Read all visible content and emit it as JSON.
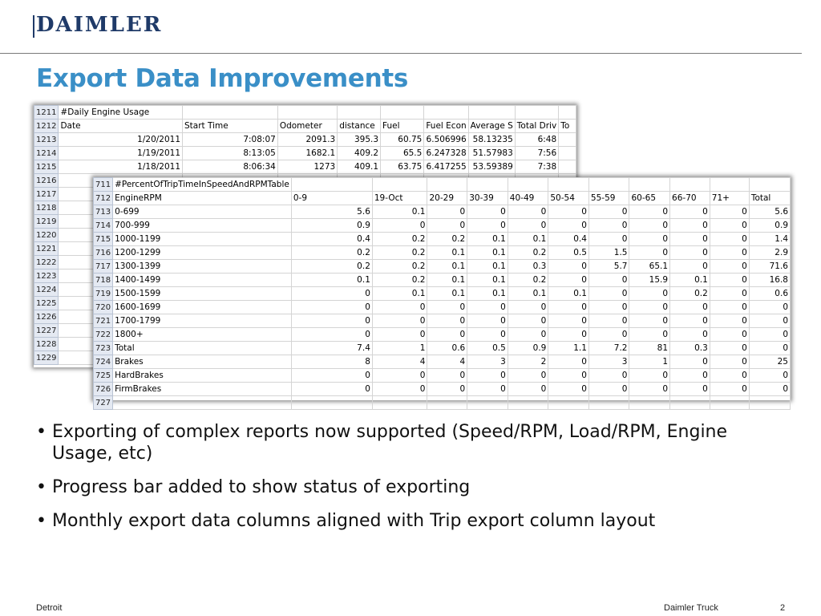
{
  "logo": {
    "text": "DAIMLER"
  },
  "title": "Export Data Improvements",
  "usage_table": {
    "rows": [
      [
        "1211",
        "#Daily Engine Usage",
        "",
        "",
        "",
        "",
        "",
        "",
        "",
        ""
      ],
      [
        "1212",
        "Date",
        "Start Time",
        "Odometer",
        "distance",
        "Fuel",
        "Fuel Econ",
        "Average S",
        "Total Driv",
        "To"
      ],
      [
        "1213",
        "1/20/2011",
        "7:08:07",
        "2091.3",
        "395.3",
        "60.75",
        "6.506996",
        "58.13235",
        "6:48",
        ""
      ],
      [
        "1214",
        "1/19/2011",
        "8:13:05",
        "1682.1",
        "409.2",
        "65.5",
        "6.247328",
        "51.57983",
        "7:56",
        ""
      ],
      [
        "1215",
        "1/18/2011",
        "8:06:34",
        "1273",
        "409.1",
        "63.75",
        "6.417255",
        "53.59389",
        "7:38",
        ""
      ],
      [
        "1216",
        "",
        "",
        "",
        "",
        "",
        "",
        "",
        "",
        ""
      ],
      [
        "1217",
        "",
        "",
        "",
        "",
        "",
        "",
        "",
        "",
        ""
      ],
      [
        "1218",
        "",
        "",
        "",
        "",
        "",
        "",
        "",
        "",
        ""
      ],
      [
        "1219",
        "",
        "",
        "",
        "",
        "",
        "",
        "",
        "",
        ""
      ],
      [
        "1220",
        "",
        "",
        "",
        "",
        "",
        "",
        "",
        "",
        ""
      ],
      [
        "1221",
        "",
        "",
        "",
        "",
        "",
        "",
        "",
        "",
        ""
      ],
      [
        "1222",
        "",
        "",
        "",
        "",
        "",
        "",
        "",
        "",
        ""
      ],
      [
        "1223",
        "",
        "",
        "",
        "",
        "",
        "",
        "",
        "",
        ""
      ],
      [
        "1224",
        "",
        "",
        "",
        "",
        "",
        "",
        "",
        "",
        ""
      ],
      [
        "1225",
        "",
        "",
        "",
        "",
        "",
        "",
        "",
        "",
        ""
      ],
      [
        "1226",
        "",
        "",
        "",
        "",
        "",
        "",
        "",
        "",
        ""
      ],
      [
        "1227",
        "",
        "",
        "",
        "",
        "",
        "",
        "",
        "",
        ""
      ],
      [
        "1228",
        "",
        "",
        "",
        "",
        "",
        "",
        "",
        "",
        ""
      ],
      [
        "1229",
        "",
        "",
        "",
        "",
        "",
        "",
        "",
        "",
        ""
      ]
    ]
  },
  "rpm_table": {
    "rows": [
      [
        "711",
        "#PercentOfTripTimeInSpeedAndRPMTable",
        "",
        "",
        "",
        "",
        "",
        "",
        "",
        "",
        "",
        "",
        ""
      ],
      [
        "712",
        "EngineRPM",
        "0-9",
        "19-Oct",
        "20-29",
        "30-39",
        "40-49",
        "50-54",
        "55-59",
        "60-65",
        "66-70",
        "71+",
        "Total"
      ],
      [
        "713",
        "0-699",
        "5.6",
        "0.1",
        "0",
        "0",
        "0",
        "0",
        "0",
        "0",
        "0",
        "0",
        "5.6"
      ],
      [
        "714",
        "700-999",
        "0.9",
        "0",
        "0",
        "0",
        "0",
        "0",
        "0",
        "0",
        "0",
        "0",
        "0.9"
      ],
      [
        "715",
        "1000-1199",
        "0.4",
        "0.2",
        "0.2",
        "0.1",
        "0.1",
        "0.4",
        "0",
        "0",
        "0",
        "0",
        "1.4"
      ],
      [
        "716",
        "1200-1299",
        "0.2",
        "0.2",
        "0.1",
        "0.1",
        "0.2",
        "0.5",
        "1.5",
        "0",
        "0",
        "0",
        "2.9"
      ],
      [
        "717",
        "1300-1399",
        "0.2",
        "0.2",
        "0.1",
        "0.1",
        "0.3",
        "0",
        "5.7",
        "65.1",
        "0",
        "0",
        "71.6"
      ],
      [
        "718",
        "1400-1499",
        "0.1",
        "0.2",
        "0.1",
        "0.1",
        "0.2",
        "0",
        "0",
        "15.9",
        "0.1",
        "0",
        "16.8"
      ],
      [
        "719",
        "1500-1599",
        "0",
        "0.1",
        "0.1",
        "0.1",
        "0.1",
        "0.1",
        "0",
        "0",
        "0.2",
        "0",
        "0.6"
      ],
      [
        "720",
        "1600-1699",
        "0",
        "0",
        "0",
        "0",
        "0",
        "0",
        "0",
        "0",
        "0",
        "0",
        "0"
      ],
      [
        "721",
        "1700-1799",
        "0",
        "0",
        "0",
        "0",
        "0",
        "0",
        "0",
        "0",
        "0",
        "0",
        "0"
      ],
      [
        "722",
        "1800+",
        "0",
        "0",
        "0",
        "0",
        "0",
        "0",
        "0",
        "0",
        "0",
        "0",
        "0"
      ],
      [
        "723",
        "Total",
        "7.4",
        "1",
        "0.6",
        "0.5",
        "0.9",
        "1.1",
        "7.2",
        "81",
        "0.3",
        "0",
        "0"
      ],
      [
        "724",
        "Brakes",
        "8",
        "4",
        "4",
        "3",
        "2",
        "0",
        "3",
        "1",
        "0",
        "0",
        "25"
      ],
      [
        "725",
        "HardBrakes",
        "0",
        "0",
        "0",
        "0",
        "0",
        "0",
        "0",
        "0",
        "0",
        "0",
        "0"
      ],
      [
        "726",
        "FirmBrakes",
        "0",
        "0",
        "0",
        "0",
        "0",
        "0",
        "0",
        "0",
        "0",
        "0",
        "0"
      ],
      [
        "727",
        "",
        "",
        "",
        "",
        "",
        "",
        "",
        "",
        "",
        "",
        "",
        ""
      ]
    ]
  },
  "bullets": [
    "Exporting of complex reports now supported (Speed/RPM, Load/RPM, Engine Usage, etc)",
    "Progress bar added to show status of exporting",
    "Monthly export data columns aligned with Trip export column layout"
  ],
  "bullet_glyph": "•",
  "footer": {
    "left": "Detroit",
    "center": "Daimler Truck",
    "page": "2"
  },
  "colors": {
    "title": "#3a8fc7",
    "logo": "#1f3a68",
    "row_header_bg": "#e4e9f2"
  }
}
